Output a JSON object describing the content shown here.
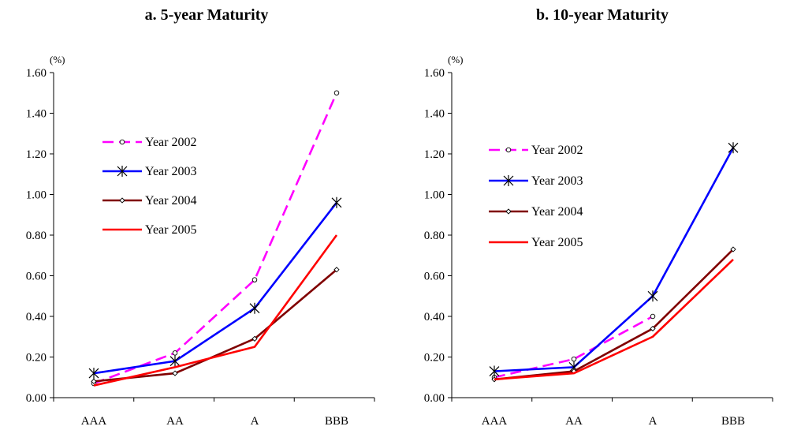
{
  "chart_data": [
    {
      "type": "line",
      "title": "a. 5-year Maturity",
      "unit_label": "(%)",
      "categories": [
        "AAA",
        "AA",
        "A",
        "BBB"
      ],
      "ylim": [
        0,
        1.6
      ],
      "yticks": [
        "0.00",
        "0.20",
        "0.40",
        "0.60",
        "0.80",
        "1.00",
        "1.20",
        "1.40",
        "1.60"
      ],
      "grid": false,
      "legend_position": "upper-left",
      "series": [
        {
          "name": "Year 2002",
          "values": [
            0.07,
            0.22,
            0.58,
            1.5
          ],
          "color": "#ff00ff",
          "dash": true,
          "marker": "circle"
        },
        {
          "name": "Year 2003",
          "values": [
            0.12,
            0.18,
            0.44,
            0.96
          ],
          "color": "#0000ff",
          "dash": false,
          "marker": "star"
        },
        {
          "name": "Year 2004",
          "values": [
            0.08,
            0.12,
            0.29,
            0.63
          ],
          "color": "#800000",
          "dash": false,
          "marker": "diamond"
        },
        {
          "name": "Year 2005",
          "values": [
            0.06,
            0.15,
            0.25,
            0.8
          ],
          "color": "#ff0000",
          "dash": false,
          "marker": "none"
        }
      ]
    },
    {
      "type": "line",
      "title": "b. 10-year Maturity",
      "unit_label": "(%)",
      "categories": [
        "AAA",
        "AA",
        "A",
        "BBB"
      ],
      "ylim": [
        0,
        1.6
      ],
      "yticks": [
        "0.00",
        "0.20",
        "0.40",
        "0.60",
        "0.80",
        "1.00",
        "1.20",
        "1.40",
        "1.60"
      ],
      "grid": false,
      "legend_position": "upper-left",
      "series": [
        {
          "name": "Year 2002",
          "values": [
            0.1,
            0.19,
            0.4,
            null
          ],
          "color": "#ff00ff",
          "dash": true,
          "marker": "circle"
        },
        {
          "name": "Year 2003",
          "values": [
            0.13,
            0.15,
            0.5,
            1.23
          ],
          "color": "#0000ff",
          "dash": false,
          "marker": "star"
        },
        {
          "name": "Year 2004",
          "values": [
            0.09,
            0.13,
            0.34,
            0.73
          ],
          "color": "#800000",
          "dash": false,
          "marker": "diamond"
        },
        {
          "name": "Year 2005",
          "values": [
            0.09,
            0.12,
            0.3,
            0.68
          ],
          "color": "#ff0000",
          "dash": false,
          "marker": "none"
        }
      ]
    }
  ]
}
